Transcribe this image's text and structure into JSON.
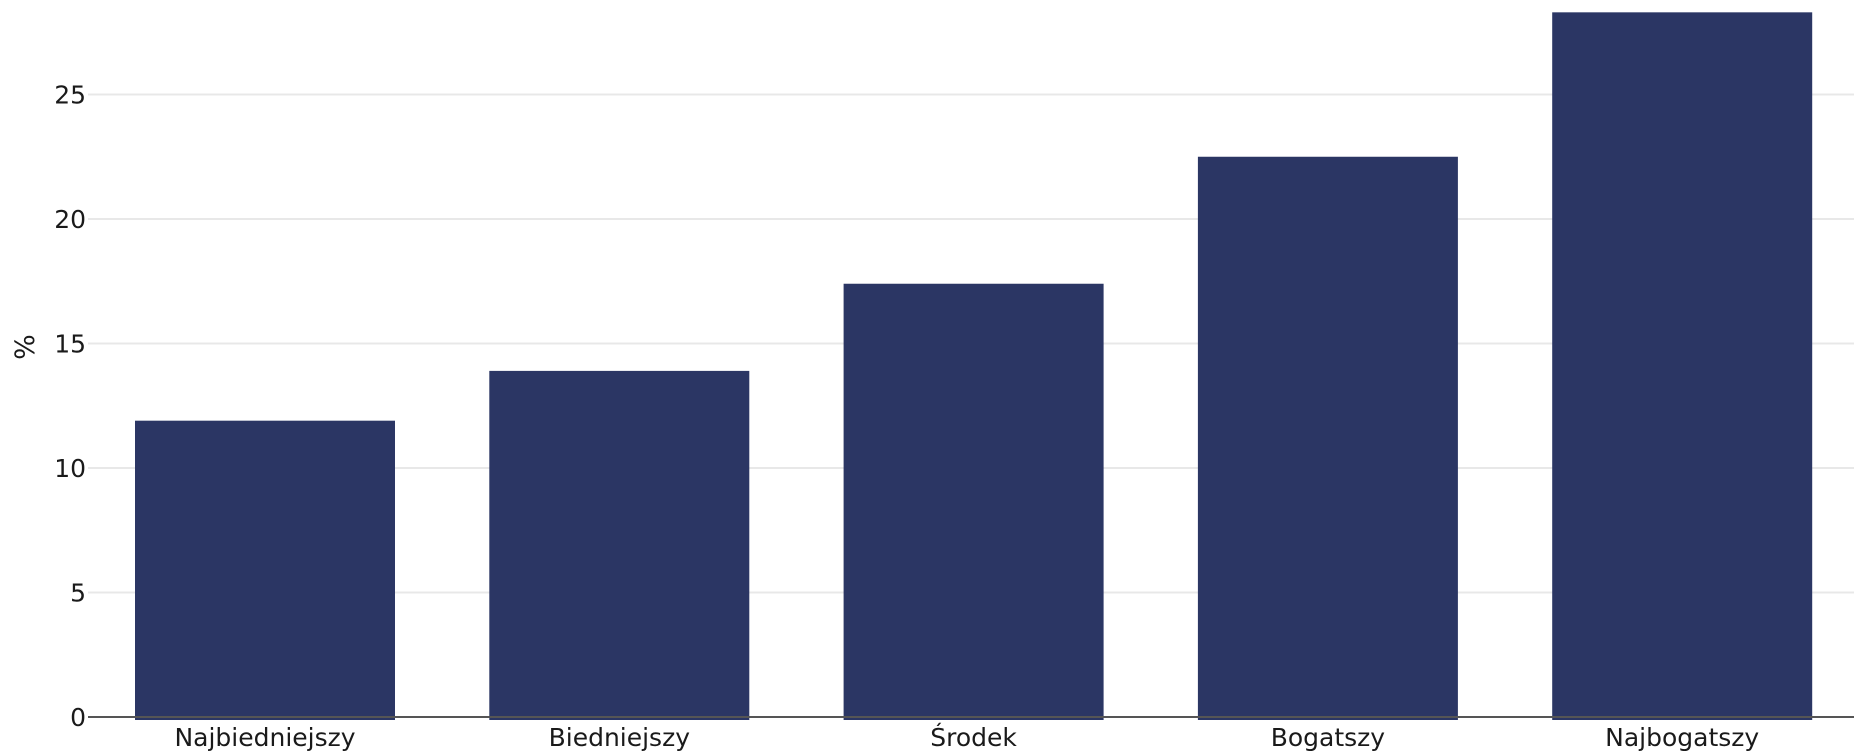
{
  "chart_data": {
    "type": "bar",
    "categories": [
      "Najbiedniejszy",
      "Biedniejszy",
      "Środek",
      "Bogatszy",
      "Najbogatszy"
    ],
    "values": [
      11.9,
      13.9,
      17.4,
      22.5,
      28.3
    ],
    "title": "",
    "xlabel": "",
    "ylabel": "%",
    "ylim": [
      0,
      28.3
    ],
    "yticks": [
      0,
      5,
      10,
      15,
      20,
      25
    ],
    "grid": true,
    "bar_color": "#2b3664"
  }
}
